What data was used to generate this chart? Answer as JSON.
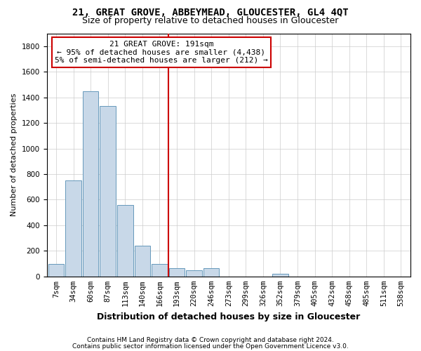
{
  "title1": "21, GREAT GROVE, ABBEYMEAD, GLOUCESTER, GL4 4QT",
  "title2": "Size of property relative to detached houses in Gloucester",
  "xlabel": "Distribution of detached houses by size in Gloucester",
  "ylabel": "Number of detached properties",
  "bin_labels": [
    "7sqm",
    "34sqm",
    "60sqm",
    "87sqm",
    "113sqm",
    "140sqm",
    "166sqm",
    "193sqm",
    "220sqm",
    "246sqm",
    "273sqm",
    "299sqm",
    "326sqm",
    "352sqm",
    "379sqm",
    "405sqm",
    "432sqm",
    "458sqm",
    "485sqm",
    "511sqm",
    "538sqm"
  ],
  "bar_heights": [
    100,
    750,
    1450,
    1330,
    560,
    240,
    95,
    65,
    50,
    65,
    0,
    0,
    0,
    20,
    0,
    0,
    0,
    0,
    0,
    0,
    0
  ],
  "bar_color": "#c8d8e8",
  "bar_edge_color": "#6699bb",
  "vline_color": "#cc0000",
  "annotation_text": "21 GREAT GROVE: 191sqm\n← 95% of detached houses are smaller (4,438)\n5% of semi-detached houses are larger (212) →",
  "annotation_box_color": "#ffffff",
  "annotation_box_edge": "#cc0000",
  "ylim": [
    0,
    1900
  ],
  "yticks": [
    0,
    200,
    400,
    600,
    800,
    1000,
    1200,
    1400,
    1600,
    1800
  ],
  "footer1": "Contains HM Land Registry data © Crown copyright and database right 2024.",
  "footer2": "Contains public sector information licensed under the Open Government Licence v3.0.",
  "background_color": "#ffffff",
  "grid_color": "#cccccc",
  "title1_fontsize": 10,
  "title2_fontsize": 9,
  "ylabel_fontsize": 8,
  "xlabel_fontsize": 9,
  "tick_fontsize": 7.5,
  "footer_fontsize": 6.5,
  "annot_fontsize": 8
}
